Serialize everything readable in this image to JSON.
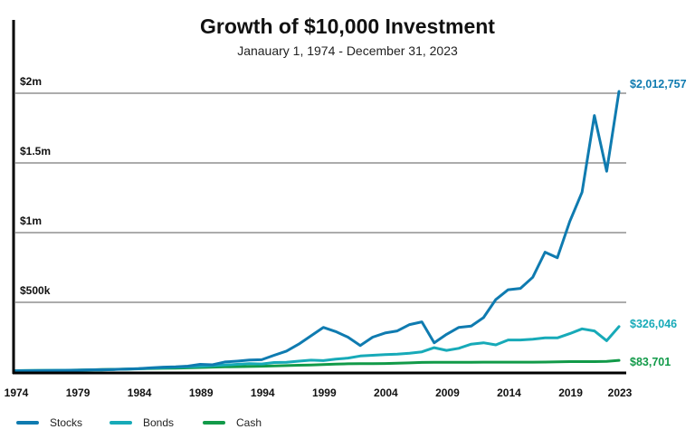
{
  "chart_data": {
    "type": "line",
    "title": "Growth of $10,000 Investment",
    "subtitle": "Janauary 1, 1974 - December 31, 2023",
    "xlabel": "",
    "ylabel": "",
    "x": [
      1974,
      1975,
      1976,
      1977,
      1978,
      1979,
      1980,
      1981,
      1982,
      1983,
      1984,
      1985,
      1986,
      1987,
      1988,
      1989,
      1990,
      1991,
      1992,
      1993,
      1994,
      1995,
      1996,
      1997,
      1998,
      1999,
      2000,
      2001,
      2002,
      2003,
      2004,
      2005,
      2006,
      2007,
      2008,
      2009,
      2010,
      2011,
      2012,
      2013,
      2014,
      2015,
      2016,
      2017,
      2018,
      2019,
      2020,
      2021,
      2022,
      2023
    ],
    "xticks": [
      "1974",
      "1979",
      "1984",
      "1989",
      "1994",
      "1999",
      "2004",
      "2009",
      "2014",
      "2019",
      "2023"
    ],
    "yticks": [
      {
        "value": 500000,
        "label": "$500k"
      },
      {
        "value": 1000000,
        "label": "$1m"
      },
      {
        "value": 1500000,
        "label": "$1.5m"
      },
      {
        "value": 2000000,
        "label": "$2m"
      }
    ],
    "ylim": [
      0,
      2000000
    ],
    "grid": true,
    "legend_position": "bottom-left",
    "series": [
      {
        "name": "Stocks",
        "color": "#0f7bb0",
        "end_label": "$2,012,757",
        "values": [
          8000,
          9000,
          10000,
          10500,
          11500,
          13000,
          15500,
          17000,
          18500,
          21000,
          24000,
          30000,
          35000,
          37000,
          42000,
          55000,
          52000,
          72000,
          78000,
          86000,
          88000,
          120000,
          150000,
          200000,
          260000,
          320000,
          290000,
          250000,
          190000,
          250000,
          280000,
          295000,
          340000,
          360000,
          210000,
          270000,
          320000,
          330000,
          390000,
          520000,
          590000,
          600000,
          680000,
          860000,
          820000,
          1080000,
          1290000,
          1840000,
          1440000,
          2012757
        ]
      },
      {
        "name": "Bonds",
        "color": "#17aab8",
        "end_label": "$326,046",
        "values": [
          10000,
          10500,
          11500,
          12500,
          13000,
          13500,
          14000,
          15000,
          18000,
          20000,
          23000,
          27000,
          31000,
          34000,
          37000,
          41000,
          45000,
          50000,
          55000,
          60000,
          58000,
          68000,
          70000,
          78000,
          85000,
          82000,
          92000,
          100000,
          115000,
          120000,
          125000,
          128000,
          135000,
          145000,
          175000,
          155000,
          170000,
          200000,
          210000,
          195000,
          230000,
          230000,
          235000,
          245000,
          245000,
          275000,
          310000,
          295000,
          225000,
          326046
        ]
      },
      {
        "name": "Cash",
        "color": "#129a49",
        "end_label": "$83,701",
        "values": [
          10000,
          10600,
          11200,
          11800,
          12600,
          13800,
          15500,
          17600,
          19400,
          21200,
          23300,
          25100,
          26600,
          28100,
          30000,
          32600,
          35200,
          37300,
          38600,
          39800,
          41400,
          43800,
          46100,
          48500,
          50900,
          53300,
          56600,
          58800,
          59700,
          60300,
          61100,
          62900,
          65800,
          69000,
          70200,
          70300,
          70400,
          70400,
          70500,
          70500,
          70500,
          70600,
          70800,
          71400,
          72800,
          74400,
          74800,
          74800,
          75900,
          83701
        ]
      }
    ]
  }
}
